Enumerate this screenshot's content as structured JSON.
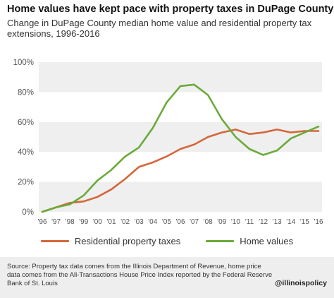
{
  "header": {
    "title": "Home values have kept pace with property taxes in DuPage County",
    "subtitle": "Change in DuPage County median home value and residential property tax extensions, 1996-2016"
  },
  "chart_data": {
    "type": "line",
    "title": "Home values have kept pace with property taxes in DuPage County",
    "subtitle": "Change in DuPage County median home value and residential property tax extensions, 1996-2016",
    "xlabel": "",
    "ylabel": "",
    "categories": [
      "'96",
      "'97",
      "'98",
      "'99",
      "'00",
      "'01",
      "'02",
      "'03",
      "'04",
      "'05",
      "'06",
      "'07",
      "'08",
      "'09",
      "'10",
      "'11",
      "'12",
      "'13",
      "'14",
      "'15",
      "'16"
    ],
    "yticks": [
      "0%",
      "20%",
      "40%",
      "60%",
      "80%",
      "100%"
    ],
    "ylim": [
      0,
      100
    ],
    "grid": true,
    "legend_position": "bottom",
    "series": [
      {
        "name": "Residential property taxes",
        "color": "#d4673a",
        "values": [
          0,
          3,
          6,
          7,
          10,
          15,
          22,
          30,
          33,
          37,
          42,
          45,
          50,
          53,
          55,
          52,
          53,
          55,
          53,
          54,
          54
        ]
      },
      {
        "name": "Home values",
        "color": "#6aaa3a",
        "values": [
          0,
          3,
          5,
          11,
          21,
          28,
          37,
          43,
          56,
          73,
          84,
          85,
          78,
          62,
          50,
          42,
          38,
          41,
          49,
          53,
          57
        ]
      }
    ]
  },
  "footer": {
    "source": "Source: Property tax data comes from the Illinois Department of Revenue, home price data comes from the All-Transactions House Price Index reported by the Federal Reserve Bank of St. Louis",
    "handle": "@illinoispolicy"
  },
  "colors": {
    "background": "#ffffff",
    "plot_band": "#efefef",
    "gridline": "#ffffff",
    "axis_text": "#555555",
    "footer_background": "#eeeeee"
  }
}
